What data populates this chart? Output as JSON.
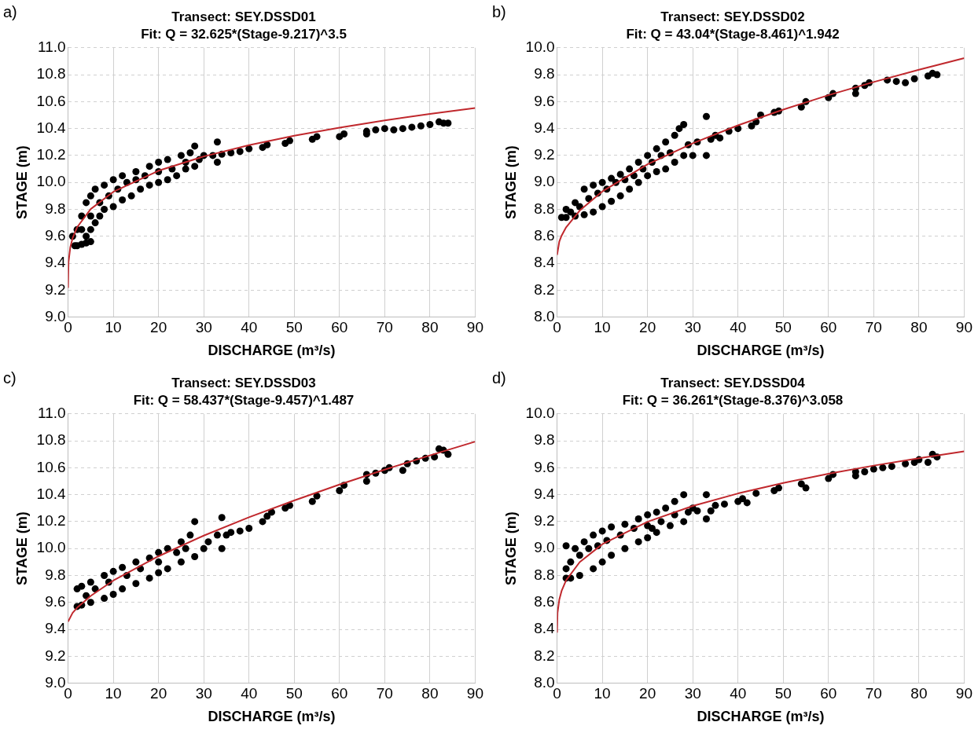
{
  "chart_data": [
    {
      "type": "scatter",
      "title": "Transect: SEY.DSSD01",
      "subtitle": "Fit: Q = 32.625*(Stage-9.217)^3.5",
      "xlabel": "DISCHARGE (m³/s)",
      "ylabel": "STAGE (m)",
      "annotations": [
        "a)"
      ],
      "xlim": [
        0,
        90
      ],
      "xticks": [
        0,
        10,
        20,
        30,
        40,
        50,
        60,
        70,
        80,
        90
      ],
      "ylim": [
        9,
        11
      ],
      "yticks": [
        {
          "value": 9,
          "label": "9.0"
        },
        {
          "value": 9.2,
          "label": "9.2"
        },
        {
          "value": 9.4,
          "label": "9.4"
        },
        {
          "value": 9.6,
          "label": "9.6"
        },
        {
          "value": 9.8,
          "label": "9.8"
        },
        {
          "value": 10,
          "label": "10.0"
        },
        {
          "value": 10.2,
          "label": "10.2"
        },
        {
          "value": 10.4,
          "label": "10.4"
        },
        {
          "value": 10.6,
          "label": "10.6"
        },
        {
          "value": 10.8,
          "label": "10.8"
        },
        {
          "value": 11,
          "label": "11.0"
        }
      ],
      "grid": true,
      "marker": "circle",
      "series": [
        {
          "color": "#000000",
          "x": [
            1,
            1.5,
            2,
            3,
            4,
            5,
            4,
            5,
            6,
            7,
            8,
            10,
            12,
            14,
            16,
            18,
            20,
            22,
            24,
            26,
            28,
            2,
            3,
            4,
            5,
            6,
            8,
            10,
            12,
            15,
            18,
            20,
            22,
            25,
            27,
            28,
            3,
            5,
            7,
            9,
            11,
            13,
            15,
            17,
            20,
            23,
            26,
            29,
            30,
            32,
            33,
            33,
            34,
            36,
            38,
            40,
            43,
            44,
            48,
            49,
            54,
            55,
            60,
            61,
            66,
            66,
            68,
            70,
            72,
            74,
            76,
            78,
            80,
            82,
            83,
            84
          ],
          "values": [
            9.6,
            9.53,
            9.53,
            9.54,
            9.55,
            9.56,
            9.6,
            9.65,
            9.7,
            9.75,
            9.8,
            9.82,
            9.87,
            9.9,
            9.95,
            9.98,
            10.0,
            10.02,
            10.05,
            10.1,
            10.12,
            9.65,
            9.75,
            9.85,
            9.9,
            9.95,
            9.98,
            10.02,
            10.05,
            10.08,
            10.12,
            10.15,
            10.17,
            10.2,
            10.22,
            10.27,
            9.65,
            9.75,
            9.85,
            9.9,
            9.95,
            10.0,
            10.02,
            10.05,
            10.08,
            10.1,
            10.15,
            10.17,
            10.2,
            10.2,
            10.3,
            10.15,
            10.21,
            10.22,
            10.23,
            10.25,
            10.26,
            10.28,
            10.29,
            10.31,
            10.32,
            10.34,
            10.34,
            10.36,
            10.36,
            10.38,
            10.39,
            10.4,
            10.39,
            10.4,
            10.41,
            10.42,
            10.43,
            10.45,
            10.44,
            10.44
          ]
        },
        {
          "type": "line",
          "color": "#c0282d",
          "marker": "none",
          "line_style": "solid",
          "x": [
            0,
            0.1,
            0.5,
            1,
            2,
            5,
            10,
            20,
            30,
            40,
            50,
            60,
            70,
            80,
            90
          ],
          "values": [
            9.217,
            9.408,
            9.52,
            9.586,
            9.667,
            9.802,
            9.93,
            10.087,
            10.193,
            10.277,
            10.347,
            10.407,
            10.461,
            10.509,
            10.553
          ]
        }
      ]
    },
    {
      "type": "scatter",
      "title": "Transect: SEY.DSSD02",
      "subtitle": "Fit: Q = 43.04*(Stage-8.461)^1.942",
      "xlabel": "DISCHARGE (m³/s)",
      "ylabel": "STAGE (m)",
      "annotations": [
        "b)"
      ],
      "xlim": [
        0,
        90
      ],
      "xticks": [
        0,
        10,
        20,
        30,
        40,
        50,
        60,
        70,
        80,
        90
      ],
      "ylim": [
        8,
        10
      ],
      "yticks": [
        {
          "value": 8,
          "label": "8.0"
        },
        {
          "value": 8.2,
          "label": "8.2"
        },
        {
          "value": 8.4,
          "label": "8.4"
        },
        {
          "value": 8.6,
          "label": "8.6"
        },
        {
          "value": 8.8,
          "label": "8.8"
        },
        {
          "value": 9,
          "label": "9.0"
        },
        {
          "value": 9.2,
          "label": "9.2"
        },
        {
          "value": 9.4,
          "label": "9.4"
        },
        {
          "value": 9.6,
          "label": "9.6"
        },
        {
          "value": 9.8,
          "label": "9.8"
        },
        {
          "value": 10,
          "label": "10.0"
        }
      ],
      "grid": true,
      "marker": "circle",
      "series": [
        {
          "color": "#000000",
          "x": [
            1,
            2,
            4,
            6,
            8,
            10,
            12,
            14,
            16,
            18,
            20,
            22,
            24,
            26,
            28,
            2,
            4,
            6,
            8,
            10,
            12,
            14,
            16,
            18,
            20,
            22,
            24,
            26,
            27,
            28,
            3,
            5,
            7,
            9,
            11,
            13,
            15,
            17,
            19,
            21,
            23,
            25,
            29,
            30,
            31,
            33,
            33,
            34,
            35,
            36,
            38,
            40,
            43,
            44,
            45,
            48,
            49,
            54,
            55,
            60,
            61,
            66,
            66,
            68,
            69,
            73,
            75,
            77,
            79,
            82,
            83,
            84
          ],
          "values": [
            8.74,
            8.74,
            8.75,
            8.76,
            8.78,
            8.82,
            8.86,
            8.9,
            8.95,
            9.0,
            9.05,
            9.08,
            9.1,
            9.15,
            9.2,
            8.8,
            8.85,
            8.95,
            8.98,
            9.0,
            9.03,
            9.06,
            9.1,
            9.15,
            9.2,
            9.25,
            9.3,
            9.35,
            9.4,
            9.43,
            8.78,
            8.82,
            8.88,
            8.92,
            8.95,
            9.0,
            9.02,
            9.05,
            9.1,
            9.15,
            9.2,
            9.22,
            9.28,
            9.2,
            9.3,
            9.49,
            9.2,
            9.32,
            9.35,
            9.33,
            9.38,
            9.4,
            9.42,
            9.45,
            9.5,
            9.52,
            9.53,
            9.56,
            9.6,
            9.63,
            9.66,
            9.66,
            9.7,
            9.72,
            9.74,
            9.76,
            9.75,
            9.74,
            9.77,
            9.79,
            9.81,
            9.8
          ]
        },
        {
          "type": "line",
          "color": "#c0282d",
          "marker": "none",
          "line_style": "solid",
          "x": [
            0,
            0.5,
            1,
            2,
            5,
            10,
            20,
            30,
            40,
            50,
            60,
            70,
            80,
            90
          ],
          "values": [
            8.461,
            8.562,
            8.605,
            8.667,
            8.791,
            8.933,
            9.135,
            9.291,
            9.424,
            9.541,
            9.648,
            9.746,
            9.837,
            9.923
          ]
        }
      ]
    },
    {
      "type": "scatter",
      "title": "Transect: SEY.DSSD03",
      "subtitle": "Fit: Q = 58.437*(Stage-9.457)^1.487",
      "xlabel": "DISCHARGE (m³/s)",
      "ylabel": "STAGE (m)",
      "annotations": [
        "c)"
      ],
      "xlim": [
        0,
        90
      ],
      "xticks": [
        0,
        10,
        20,
        30,
        40,
        50,
        60,
        70,
        80,
        90
      ],
      "ylim": [
        9,
        11
      ],
      "yticks": [
        {
          "value": 9,
          "label": "9.0"
        },
        {
          "value": 9.2,
          "label": "9.2"
        },
        {
          "value": 9.4,
          "label": "9.4"
        },
        {
          "value": 9.6,
          "label": "9.6"
        },
        {
          "value": 9.8,
          "label": "9.8"
        },
        {
          "value": 10,
          "label": "10.0"
        },
        {
          "value": 10.2,
          "label": "10.2"
        },
        {
          "value": 10.4,
          "label": "10.4"
        },
        {
          "value": 10.6,
          "label": "10.6"
        },
        {
          "value": 10.8,
          "label": "10.8"
        },
        {
          "value": 11,
          "label": "11.0"
        }
      ],
      "grid": true,
      "marker": "circle",
      "series": [
        {
          "color": "#000000",
          "x": [
            2,
            3,
            5,
            8,
            10,
            12,
            15,
            18,
            20,
            22,
            25,
            28,
            2,
            3,
            5,
            8,
            10,
            12,
            15,
            18,
            20,
            22,
            25,
            27,
            28,
            4,
            6,
            9,
            13,
            16,
            20,
            24,
            26,
            30,
            31,
            33,
            34,
            34,
            35,
            36,
            38,
            40,
            43,
            44,
            45,
            48,
            49,
            54,
            55,
            60,
            61,
            66,
            66,
            68,
            70,
            71,
            74,
            75,
            77,
            79,
            81,
            82,
            83,
            84
          ],
          "values": [
            9.57,
            9.58,
            9.6,
            9.63,
            9.66,
            9.7,
            9.74,
            9.78,
            9.82,
            9.85,
            9.9,
            9.94,
            9.7,
            9.72,
            9.75,
            9.8,
            9.83,
            9.86,
            9.9,
            9.93,
            9.97,
            10.0,
            10.05,
            10.1,
            10.2,
            9.65,
            9.7,
            9.75,
            9.8,
            9.85,
            9.9,
            9.97,
            10.0,
            10.0,
            10.05,
            10.1,
            10.0,
            10.23,
            10.1,
            10.12,
            10.13,
            10.15,
            10.2,
            10.24,
            10.27,
            10.3,
            10.32,
            10.35,
            10.39,
            10.43,
            10.47,
            10.5,
            10.55,
            10.56,
            10.58,
            10.6,
            10.58,
            10.63,
            10.65,
            10.67,
            10.68,
            10.74,
            10.73,
            10.7
          ]
        },
        {
          "type": "line",
          "color": "#c0282d",
          "marker": "none",
          "line_style": "solid",
          "x": [
            0,
            1,
            2,
            5,
            10,
            20,
            30,
            40,
            50,
            60,
            70,
            80,
            90
          ],
          "values": [
            9.457,
            9.522,
            9.56,
            9.648,
            9.762,
            9.943,
            10.096,
            10.232,
            10.357,
            10.475,
            10.586,
            10.692,
            10.794
          ]
        }
      ]
    },
    {
      "type": "scatter",
      "title": "Transect: SEY.DSSD04",
      "subtitle": "Fit: Q = 36.261*(Stage-8.376)^3.058",
      "xlabel": "DISCHARGE (m³/s)",
      "ylabel": "STAGE (m)",
      "annotations": [
        "d)"
      ],
      "xlim": [
        0,
        90
      ],
      "xticks": [
        0,
        10,
        20,
        30,
        40,
        50,
        60,
        70,
        80,
        90
      ],
      "ylim": [
        8,
        10
      ],
      "yticks": [
        {
          "value": 8,
          "label": "8.0"
        },
        {
          "value": 8.2,
          "label": "8.2"
        },
        {
          "value": 8.4,
          "label": "8.4"
        },
        {
          "value": 8.6,
          "label": "8.6"
        },
        {
          "value": 8.8,
          "label": "8.8"
        },
        {
          "value": 9,
          "label": "9.0"
        },
        {
          "value": 9.2,
          "label": "9.2"
        },
        {
          "value": 9.4,
          "label": "9.4"
        },
        {
          "value": 9.6,
          "label": "9.6"
        },
        {
          "value": 9.8,
          "label": "9.8"
        },
        {
          "value": 10,
          "label": "10.0"
        }
      ],
      "grid": true,
      "marker": "circle",
      "series": [
        {
          "color": "#000000",
          "x": [
            2,
            3,
            5,
            8,
            10,
            12,
            15,
            18,
            20,
            22,
            25,
            28,
            2,
            4,
            6,
            8,
            10,
            12,
            15,
            18,
            20,
            22,
            24,
            26,
            28,
            3,
            5,
            7,
            9,
            11,
            14,
            17,
            20,
            23,
            26,
            2,
            21,
            29,
            30,
            31,
            33,
            33,
            34,
            35,
            37,
            40,
            41,
            42,
            44,
            48,
            49,
            54,
            55,
            60,
            61,
            66,
            66,
            68,
            70,
            72,
            74,
            77,
            79,
            80,
            82,
            83,
            84
          ],
          "values": [
            8.78,
            8.78,
            8.8,
            8.85,
            8.9,
            8.95,
            9.0,
            9.05,
            9.08,
            9.12,
            9.17,
            9.2,
            9.02,
            9.0,
            9.05,
            9.1,
            9.13,
            9.16,
            9.18,
            9.22,
            9.25,
            9.27,
            9.3,
            9.35,
            9.4,
            8.9,
            8.95,
            9.0,
            9.02,
            9.06,
            9.1,
            9.15,
            9.17,
            9.2,
            9.25,
            8.85,
            9.15,
            9.27,
            9.3,
            9.28,
            9.4,
            9.22,
            9.28,
            9.32,
            9.33,
            9.35,
            9.37,
            9.34,
            9.41,
            9.43,
            9.45,
            9.48,
            9.45,
            9.52,
            9.55,
            9.54,
            9.57,
            9.57,
            9.59,
            9.6,
            9.61,
            9.63,
            9.64,
            9.66,
            9.64,
            9.7,
            9.68
          ]
        },
        {
          "type": "line",
          "color": "#c0282d",
          "marker": "none",
          "line_style": "solid",
          "x": [
            0,
            0.1,
            0.5,
            1,
            2,
            5,
            10,
            20,
            30,
            40,
            50,
            60,
            70,
            80,
            90
          ],
          "values": [
            8.376,
            8.522,
            8.622,
            8.685,
            8.764,
            8.899,
            9.032,
            9.199,
            9.316,
            9.409,
            9.487,
            9.555,
            9.616,
            9.671,
            9.722
          ]
        }
      ]
    }
  ]
}
